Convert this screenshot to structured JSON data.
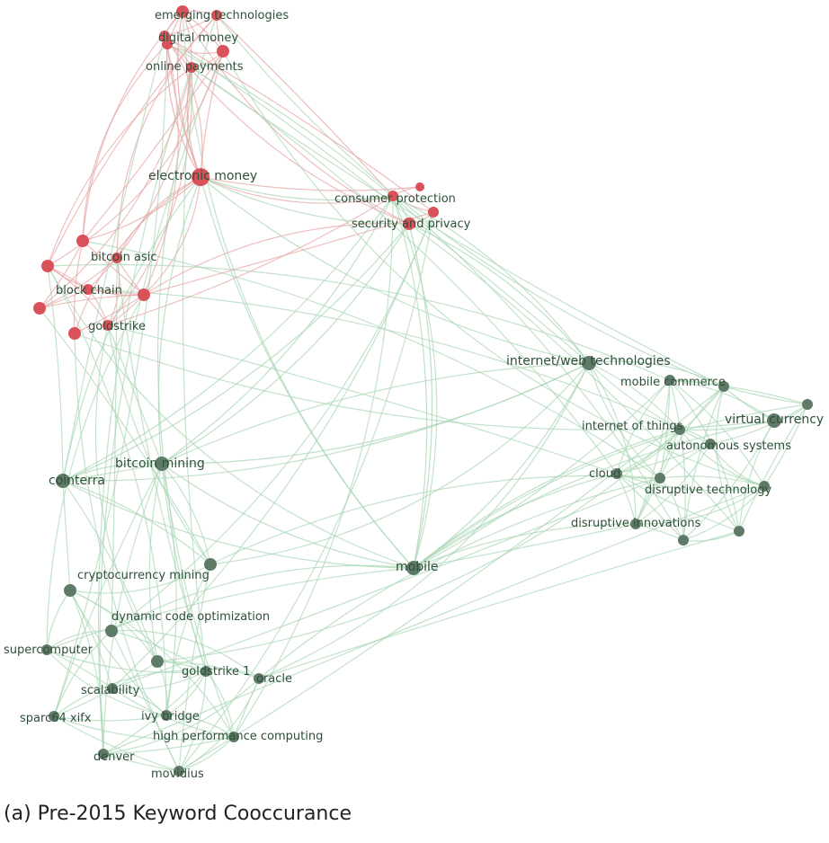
{
  "caption": "(a) Pre-2015 Keyword Cooccurance",
  "colors": {
    "red_cluster": "#d9525a",
    "green_cluster": "#5f7a67",
    "red_edge": "#e6a4a4",
    "green_edge": "#a9d6b4",
    "label": "#2f4f3a"
  },
  "nodes": [
    {
      "id": "emerging technologies",
      "label": "emerging technologies",
      "cluster": "red"
    },
    {
      "id": "digital money",
      "label": "digital money",
      "cluster": "red"
    },
    {
      "id": "online payments",
      "label": "online payments",
      "cluster": "red"
    },
    {
      "id": "electronic money",
      "label": "electronic money",
      "cluster": "red"
    },
    {
      "id": "consumer protection",
      "label": "consumer protection",
      "cluster": "red"
    },
    {
      "id": "security and privacy",
      "label": "security and privacy",
      "cluster": "red"
    },
    {
      "id": "bitcoin asic",
      "label": "bitcoin asic",
      "cluster": "red"
    },
    {
      "id": "block chain",
      "label": "block chain",
      "cluster": "red"
    },
    {
      "id": "goldstrike",
      "label": "goldstrike",
      "cluster": "red"
    },
    {
      "id": "internet/web technologies",
      "label": "internet/web technologies",
      "cluster": "green"
    },
    {
      "id": "mobile commerce",
      "label": "mobile commerce",
      "cluster": "green"
    },
    {
      "id": "internet of things",
      "label": "internet of things",
      "cluster": "green"
    },
    {
      "id": "virtual currency",
      "label": "virtual currency",
      "cluster": "green"
    },
    {
      "id": "autonomous systems",
      "label": "autonomous systems",
      "cluster": "green"
    },
    {
      "id": "cloud",
      "label": "cloud",
      "cluster": "green"
    },
    {
      "id": "disruptive technology",
      "label": "disruptive technology",
      "cluster": "green"
    },
    {
      "id": "disruptive innovations",
      "label": "disruptive innovations",
      "cluster": "green"
    },
    {
      "id": "bitcoin mining",
      "label": "bitcoin mining",
      "cluster": "green"
    },
    {
      "id": "cointerra",
      "label": "cointerra",
      "cluster": "green"
    },
    {
      "id": "mobile",
      "label": "mobile",
      "cluster": "green"
    },
    {
      "id": "cryptocurrency mining",
      "label": "cryptocurrency mining",
      "cluster": "green"
    },
    {
      "id": "dynamic code optimization",
      "label": "dynamic code optimization",
      "cluster": "green"
    },
    {
      "id": "supercomputer",
      "label": "supercomputer",
      "cluster": "green"
    },
    {
      "id": "goldstrike 1",
      "label": "goldstrike 1",
      "cluster": "green"
    },
    {
      "id": "oracle",
      "label": "oracle",
      "cluster": "green"
    },
    {
      "id": "scalability",
      "label": "scalability",
      "cluster": "green"
    },
    {
      "id": "sparc64 xifx",
      "label": "sparc64 xifx",
      "cluster": "green"
    },
    {
      "id": "ivy bridge",
      "label": "ivy bridge",
      "cluster": "green"
    },
    {
      "id": "high performance computing",
      "label": "high performance computing",
      "cluster": "green"
    },
    {
      "id": "denver",
      "label": "denver",
      "cluster": "green"
    },
    {
      "id": "movidius",
      "label": "movidius",
      "cluster": "green"
    }
  ]
}
